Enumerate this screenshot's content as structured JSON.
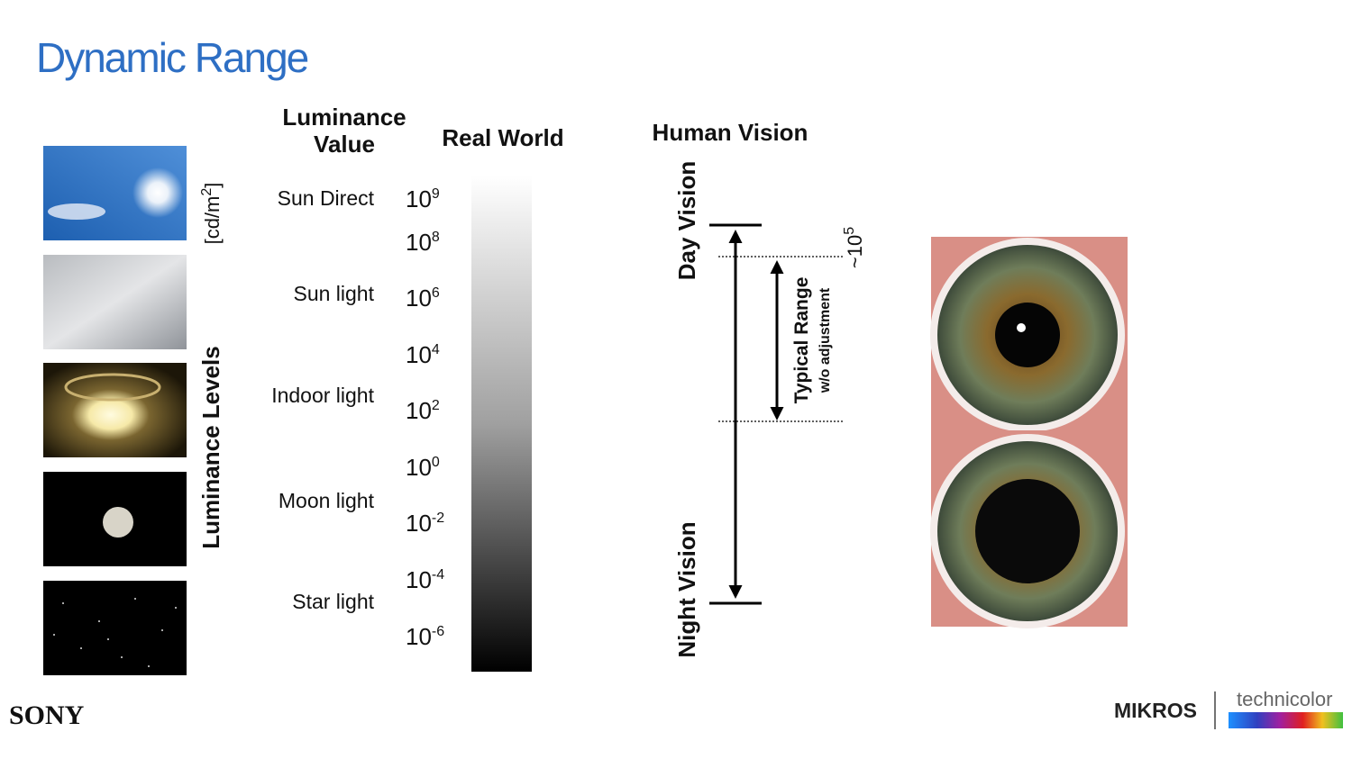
{
  "title": "Dynamic Range",
  "columns": {
    "luminance_value": [
      "Luminance",
      "Value"
    ],
    "real_world": "Real World",
    "human_vision": "Human Vision"
  },
  "unit": {
    "text": "[cd/m",
    "sup": "2",
    "close": "]"
  },
  "axis_label": "Luminance Levels",
  "levels": [
    "Sun Direct",
    "Sun light",
    "Indoor light",
    "Moon light",
    "Star light"
  ],
  "exponents": [
    {
      "base": "10",
      "exp": "9"
    },
    {
      "base": "10",
      "exp": "8"
    },
    {
      "base": "10",
      "exp": "6"
    },
    {
      "base": "10",
      "exp": "4"
    },
    {
      "base": "10",
      "exp": "2"
    },
    {
      "base": "10",
      "exp": "0"
    },
    {
      "base": "10",
      "exp": "-2"
    },
    {
      "base": "10",
      "exp": "-4"
    },
    {
      "base": "10",
      "exp": "-6"
    }
  ],
  "human_vision": {
    "day": "Day Vision",
    "night": "Night Vision",
    "typical_range": "Typical Range",
    "typical_note": "w/o adjustment",
    "span": {
      "base": "~10",
      "exp": "5"
    }
  },
  "logos": {
    "left": "SONY",
    "right": "MIKROS",
    "partner": "technicolor"
  }
}
